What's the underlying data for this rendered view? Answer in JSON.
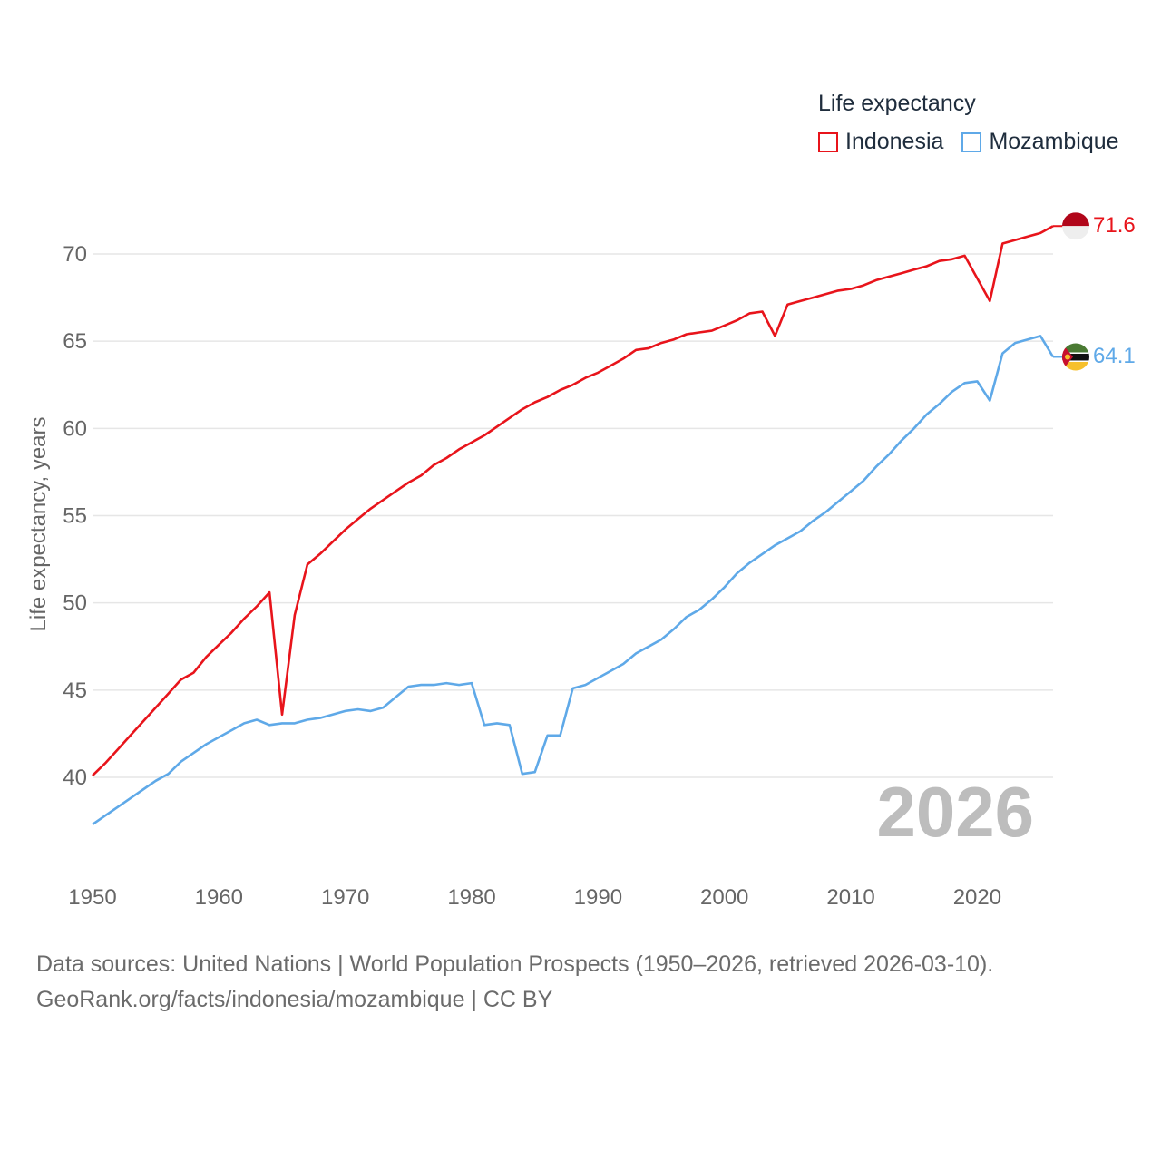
{
  "legend": {
    "title": "Life expectancy",
    "items": [
      {
        "name": "Indonesia",
        "color": "#e8141b"
      },
      {
        "name": "Mozambique",
        "color": "#5fa9e8"
      }
    ]
  },
  "year_watermark": "2026",
  "source": {
    "line1": "Data sources: United Nations | World Population Prospects (1950–2026, retrieved 2026-03-10).",
    "line2": "GeoRank.org/facts/indonesia/mozambique | CC BY"
  },
  "end_labels": {
    "indonesia": "71.6",
    "mozambique": "64.1"
  },
  "flags": {
    "indonesia": "indonesia-flag-icon",
    "mozambique": "mozambique-flag-icon"
  },
  "chart_data": {
    "type": "line",
    "title": "Life expectancy",
    "xlabel": "",
    "ylabel": "Life expectancy, years",
    "xlim": [
      1950,
      2026
    ],
    "ylim": [
      35,
      73
    ],
    "x_ticks": [
      1950,
      1960,
      1970,
      1980,
      1990,
      2000,
      2010,
      2020
    ],
    "y_ticks": [
      40,
      45,
      50,
      55,
      60,
      65,
      70
    ],
    "grid": true,
    "legend_position": "top-right",
    "x": [
      1950,
      1951,
      1952,
      1953,
      1954,
      1955,
      1956,
      1957,
      1958,
      1959,
      1960,
      1961,
      1962,
      1963,
      1964,
      1965,
      1966,
      1967,
      1968,
      1969,
      1970,
      1971,
      1972,
      1973,
      1974,
      1975,
      1976,
      1977,
      1978,
      1979,
      1980,
      1981,
      1982,
      1983,
      1984,
      1985,
      1986,
      1987,
      1988,
      1989,
      1990,
      1991,
      1992,
      1993,
      1994,
      1995,
      1996,
      1997,
      1998,
      1999,
      2000,
      2001,
      2002,
      2003,
      2004,
      2005,
      2006,
      2007,
      2008,
      2009,
      2010,
      2011,
      2012,
      2013,
      2014,
      2015,
      2016,
      2017,
      2018,
      2019,
      2020,
      2021,
      2022,
      2023,
      2024,
      2025,
      2026
    ],
    "series": [
      {
        "name": "Indonesia",
        "color": "#e8141b",
        "values": [
          40.1,
          40.8,
          41.6,
          42.4,
          43.2,
          44.0,
          44.8,
          45.6,
          46.0,
          46.9,
          47.6,
          48.3,
          49.1,
          49.8,
          50.6,
          43.6,
          49.3,
          52.2,
          52.8,
          53.5,
          54.2,
          54.8,
          55.4,
          55.9,
          56.4,
          56.9,
          57.3,
          57.9,
          58.3,
          58.8,
          59.2,
          59.6,
          60.1,
          60.6,
          61.1,
          61.5,
          61.8,
          62.2,
          62.5,
          62.9,
          63.2,
          63.6,
          64.0,
          64.5,
          64.6,
          64.9,
          65.1,
          65.4,
          65.5,
          65.6,
          65.9,
          66.2,
          66.6,
          66.7,
          65.3,
          67.1,
          67.3,
          67.5,
          67.7,
          67.9,
          68.0,
          68.2,
          68.5,
          68.7,
          68.9,
          69.1,
          69.3,
          69.6,
          69.7,
          69.9,
          68.6,
          67.3,
          70.6,
          70.8,
          71.0,
          71.2,
          71.6
        ]
      },
      {
        "name": "Mozambique",
        "color": "#5fa9e8",
        "values": [
          37.3,
          37.8,
          38.3,
          38.8,
          39.3,
          39.8,
          40.2,
          40.9,
          41.4,
          41.9,
          42.3,
          42.7,
          43.1,
          43.3,
          43.0,
          43.1,
          43.1,
          43.3,
          43.4,
          43.6,
          43.8,
          43.9,
          43.8,
          44.0,
          44.6,
          45.2,
          45.3,
          45.3,
          45.4,
          45.3,
          45.4,
          43.0,
          43.1,
          43.0,
          40.2,
          40.3,
          42.4,
          42.4,
          45.1,
          45.3,
          45.7,
          46.1,
          46.5,
          47.1,
          47.5,
          47.9,
          48.5,
          49.2,
          49.6,
          50.2,
          50.9,
          51.7,
          52.3,
          52.8,
          53.3,
          53.7,
          54.1,
          54.7,
          55.2,
          55.8,
          56.4,
          57.0,
          57.8,
          58.5,
          59.3,
          60.0,
          60.8,
          61.4,
          62.1,
          62.6,
          62.7,
          61.6,
          64.3,
          64.9,
          65.1,
          65.3,
          64.1
        ]
      }
    ]
  }
}
